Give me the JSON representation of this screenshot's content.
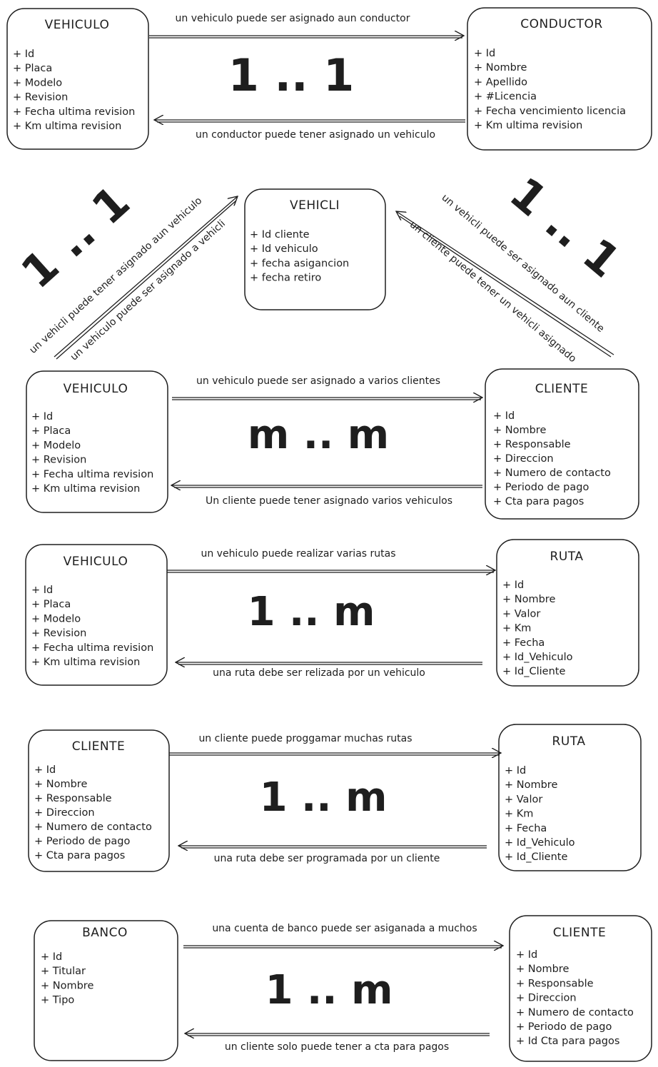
{
  "boxes": {
    "vehiculo_1": {
      "title": "VEHICULO",
      "fields": [
        "+ Id",
        "+ Placa",
        "+ Modelo",
        "+ Revision",
        "+ Fecha ultima revision",
        "+ Km ultima revision"
      ]
    },
    "conductor": {
      "title": "CONDUCTOR",
      "fields": [
        "+ Id",
        "+ Nombre",
        "+ Apellido",
        "+ #Licencia",
        "+ Fecha vencimiento licencia",
        "+ Km ultima revision"
      ]
    },
    "vehicli": {
      "title": "VEHICLI",
      "fields": [
        "+ Id cliente",
        "+ Id vehiculo",
        "+ fecha asigancion",
        "+ fecha retiro"
      ]
    },
    "vehiculo_2": {
      "title": "VEHICULO",
      "fields": [
        "+ Id",
        "+ Placa",
        "+ Modelo",
        "+ Revision",
        "+ Fecha ultima revision",
        "+ Km ultima revision"
      ]
    },
    "cliente_2": {
      "title": "CLIENTE",
      "fields": [
        "+ Id",
        "+ Nombre",
        "+ Responsable",
        "+ Direccion",
        "+ Numero de contacto",
        "+ Periodo de pago",
        "+ Cta para pagos"
      ]
    },
    "vehiculo_3": {
      "title": "VEHICULO",
      "fields": [
        "+ Id",
        "+ Placa",
        "+ Modelo",
        "+ Revision",
        "+ Fecha ultima revision",
        "+ Km ultima revision"
      ]
    },
    "ruta_3": {
      "title": "RUTA",
      "fields": [
        "+ Id",
        "+ Nombre",
        "+ Valor",
        "+ Km",
        "+ Fecha",
        "+ Id_Vehiculo",
        "+ Id_Cliente"
      ]
    },
    "cliente_4": {
      "title": "CLIENTE",
      "fields": [
        "+ Id",
        "+ Nombre",
        "+ Responsable",
        "+ Direccion",
        "+ Numero de contacto",
        "+ Periodo de pago",
        "+ Cta para pagos"
      ]
    },
    "ruta_4": {
      "title": "RUTA",
      "fields": [
        "+ Id",
        "+ Nombre",
        "+ Valor",
        "+ Km",
        "+ Fecha",
        "+ Id_Vehiculo",
        "+ Id_Cliente"
      ]
    },
    "banco": {
      "title": "BANCO",
      "fields": [
        "+ Id",
        "+ Titular",
        "+ Nombre",
        "+ Tipo"
      ]
    },
    "cliente_5": {
      "title": "CLIENTE",
      "fields": [
        "+ Id",
        "+ Nombre",
        "+ Responsable",
        "+ Direccion",
        "+ Numero de contacto",
        "+ Periodo de pago",
        "+ Id Cta para pagos"
      ]
    }
  },
  "relations": {
    "r1": {
      "top": "un vehiculo puede ser asignado aun conductor",
      "bottom": "un conductor puede tener asignado un vehiculo",
      "card": "1 .. 1"
    },
    "r_left": {
      "a": "un vehicli puede tener asignado aun vehiculo",
      "b": "un vehiculo puede ser asignado a vehicli",
      "card": "1 .. 1"
    },
    "r_right": {
      "a": "un vehicli puede ser asignado aun cliente",
      "b": "un cliente puede tener un vehicli asignado",
      "card": "1 .. 1"
    },
    "r2": {
      "top": "un vehiculo puede ser asignado a varios clientes",
      "bottom": "Un cliente puede tener asignado varios vehiculos",
      "card": "m .. m"
    },
    "r3": {
      "top": "un vehiculo puede realizar varias rutas",
      "bottom": "una ruta debe ser relizada por un vehiculo",
      "card": "1 .. m"
    },
    "r4": {
      "top": "un cliente puede proggamar muchas rutas",
      "bottom": "una ruta debe ser programada por un cliente",
      "card": "1 .. m"
    },
    "r5": {
      "top": "una cuenta de banco puede ser asiganada a muchos",
      "bottom": "un cliente solo puede tener a cta para pagos",
      "card": "1 .. m"
    }
  },
  "colors": {
    "stroke": "#1e1e1e",
    "background": "#ffffff"
  }
}
